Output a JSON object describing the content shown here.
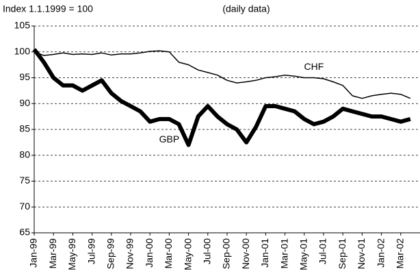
{
  "chart_data": {
    "type": "line",
    "subtitle": "(daily data)",
    "y_label": "Index 1.1.1999 = 100",
    "categories": [
      "Jan-99",
      null,
      "Mar-99",
      null,
      "May-99",
      null,
      "Jul-99",
      null,
      "Sep-99",
      null,
      "Nov-99",
      null,
      "Jan-00",
      null,
      "Mar-00",
      null,
      "May-00",
      null,
      "Jul-00",
      null,
      "Sep-00",
      null,
      "Nov-00",
      null,
      "Jan-01",
      null,
      "Mar-01",
      null,
      "May-01",
      null,
      "Jul-01",
      null,
      "Sep-01",
      null,
      "Nov-01",
      null,
      "Jan-02",
      null,
      "Mar-02",
      null
    ],
    "series": [
      {
        "name": "CHF",
        "color": "#000000",
        "width": 1.5,
        "values": [
          100,
          99.3,
          99.5,
          99.8,
          99.5,
          99.6,
          99.5,
          99.8,
          99.4,
          99.6,
          99.6,
          99.8,
          100.1,
          100.2,
          100.0,
          98.0,
          97.5,
          96.5,
          96.0,
          95.5,
          94.5,
          94.0,
          94.2,
          94.5,
          95.0,
          95.2,
          95.5,
          95.3,
          95.0,
          95.0,
          94.8,
          94.2,
          93.5,
          91.5,
          91.0,
          91.5,
          91.8,
          92.0,
          91.8,
          91.0
        ]
      },
      {
        "name": "GBP",
        "color": "#000000",
        "width": 6,
        "values": [
          100.5,
          98,
          95,
          93.5,
          93.5,
          92.5,
          93.5,
          94.5,
          92,
          90.5,
          89.5,
          88.5,
          86.5,
          87,
          87,
          86,
          82,
          87.5,
          89.5,
          87.5,
          86,
          85,
          82.5,
          85.5,
          89.5,
          89.5,
          89,
          88.5,
          87,
          86,
          86.5,
          87.5,
          89,
          88.5,
          88,
          87.5,
          87.5,
          87,
          86.5,
          87
        ]
      }
    ],
    "annotations": [
      {
        "text": "CHF",
        "x": 29,
        "y": 97
      },
      {
        "text": "GBP",
        "x": 14,
        "y": 83
      }
    ],
    "ylim": [
      65,
      105
    ],
    "yticks": [
      65,
      70,
      75,
      80,
      85,
      90,
      95,
      100,
      105
    ],
    "grid": true
  }
}
